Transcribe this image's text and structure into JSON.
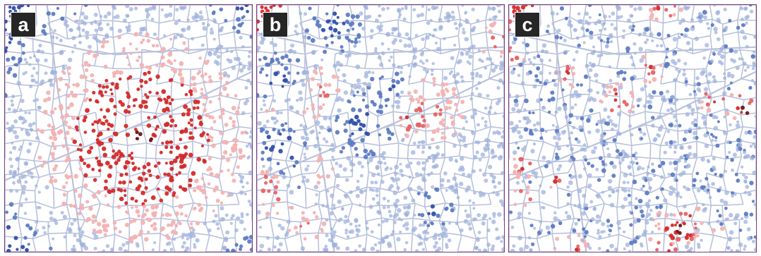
{
  "figure": {
    "panels": [
      {
        "label": "a",
        "pattern": "radial"
      },
      {
        "label": "b",
        "pattern": "patchy"
      },
      {
        "label": "c",
        "pattern": "hotspots"
      }
    ]
  },
  "colors": {
    "road": "#b9c2dc",
    "frame": "#7a3a7a",
    "badge_bg": "#262626",
    "badge_text": "#ffffff",
    "scale": [
      "#2f4fa8",
      "#5e7cc4",
      "#9fb1dc",
      "#f3b2b2",
      "#e86262",
      "#d32a2a",
      "#6b1515"
    ]
  }
}
